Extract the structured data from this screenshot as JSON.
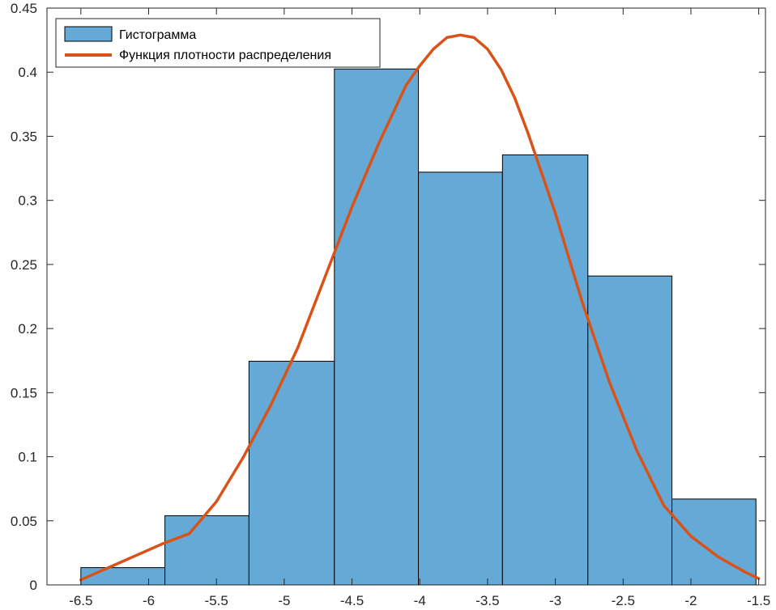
{
  "chart_data": {
    "type": "bar",
    "xlim": [
      -6.75,
      -1.45
    ],
    "ylim": [
      0,
      0.45
    ],
    "xticks": [
      -6.5,
      -6,
      -5.5,
      -5,
      -4.5,
      -4,
      -3.5,
      -3,
      -2.5,
      -2,
      -1.5
    ],
    "xtick_labels": [
      "-6.5",
      "-6",
      "-5.5",
      "-5",
      "-4.5",
      "-4",
      "-3.5",
      "-3",
      "-2.5",
      "-2",
      "-1.5"
    ],
    "yticks": [
      0,
      0.05,
      0.1,
      0.15,
      0.2,
      0.25,
      0.3,
      0.35,
      0.4,
      0.45
    ],
    "ytick_labels": [
      "0",
      "0.05",
      "0.1",
      "0.15",
      "0.2",
      "0.25",
      "0.3",
      "0.35",
      "0.4",
      "0.45"
    ],
    "grid": false,
    "legend_position": "top-left",
    "series": [
      {
        "name": "Гистограмма",
        "kind": "histogram",
        "color": "#65a9d7",
        "edge_color": "#000000",
        "bin_edges": [
          -6.5,
          -5.88,
          -5.26,
          -4.63,
          -4.01,
          -3.39,
          -2.76,
          -2.14,
          -1.52
        ],
        "values": [
          0.0135,
          0.054,
          0.1745,
          0.4025,
          0.322,
          0.3355,
          0.241,
          0.067
        ]
      },
      {
        "name": "Функция плотности распределения",
        "kind": "line",
        "color": "#d95319",
        "x": [
          -6.5,
          -6.2,
          -5.9,
          -5.7,
          -5.5,
          -5.3,
          -5.1,
          -4.9,
          -4.7,
          -4.5,
          -4.3,
          -4.1,
          -4.0,
          -3.9,
          -3.8,
          -3.7,
          -3.6,
          -3.5,
          -3.4,
          -3.3,
          -3.2,
          -3.0,
          -2.8,
          -2.6,
          -2.4,
          -2.2,
          -2.0,
          -1.8,
          -1.6,
          -1.5
        ],
        "values": [
          0.004,
          0.018,
          0.032,
          0.04,
          0.065,
          0.1,
          0.14,
          0.185,
          0.24,
          0.295,
          0.345,
          0.39,
          0.405,
          0.418,
          0.427,
          0.429,
          0.427,
          0.418,
          0.402,
          0.38,
          0.352,
          0.29,
          0.22,
          0.158,
          0.105,
          0.062,
          0.038,
          0.022,
          0.01,
          0.005
        ]
      }
    ]
  }
}
